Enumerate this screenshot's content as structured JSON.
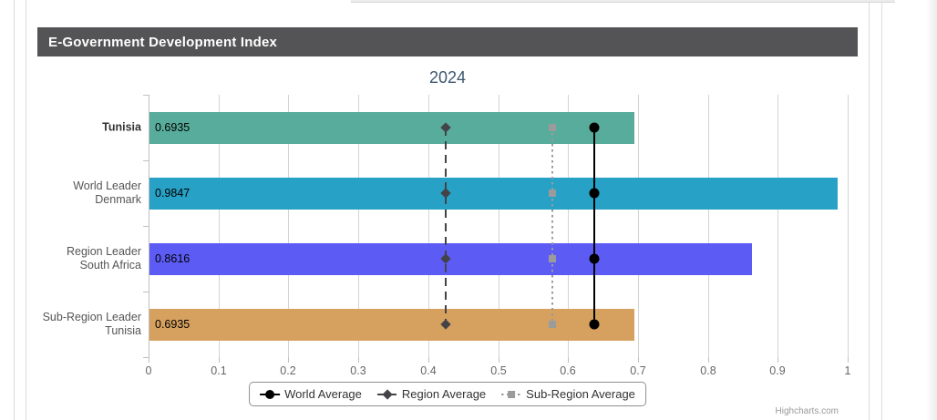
{
  "page": {
    "panel_title": "E-Government Development Index",
    "credits": "Highcharts.com"
  },
  "chart_data": {
    "type": "bar",
    "orientation": "horizontal",
    "title": "2024",
    "categories": [
      "Tunisia",
      "World Leader\nDenmark",
      "Region Leader\nSouth Africa",
      "Sub-Region Leader\nTunisia"
    ],
    "values": [
      0.6935,
      0.9847,
      0.8616,
      0.6935
    ],
    "value_labels": [
      "0.6935",
      "0.9847",
      "0.8616",
      "0.6935"
    ],
    "bar_colors": [
      "#58AC9B",
      "#27A1C5",
      "#5C5CF5",
      "#D6A05F"
    ],
    "xlim": [
      0,
      1
    ],
    "tick_labels": [
      "0",
      "0.1",
      "0.2",
      "0.3",
      "0.4",
      "0.5",
      "0.6",
      "0.7",
      "0.8",
      "0.9",
      "1"
    ],
    "grid": true,
    "legend_position": "bottom",
    "reference_lines": [
      {
        "name": "World Average",
        "value": 0.638,
        "line_style": "solid",
        "color": "#000000",
        "marker": "circle"
      },
      {
        "name": "Region Average",
        "value": 0.425,
        "line_style": "dashed",
        "color": "#434348",
        "marker": "diamond"
      },
      {
        "name": "Sub-Region Average",
        "value": 0.578,
        "line_style": "dotted",
        "color": "#9B9B9B",
        "marker": "square"
      }
    ]
  }
}
